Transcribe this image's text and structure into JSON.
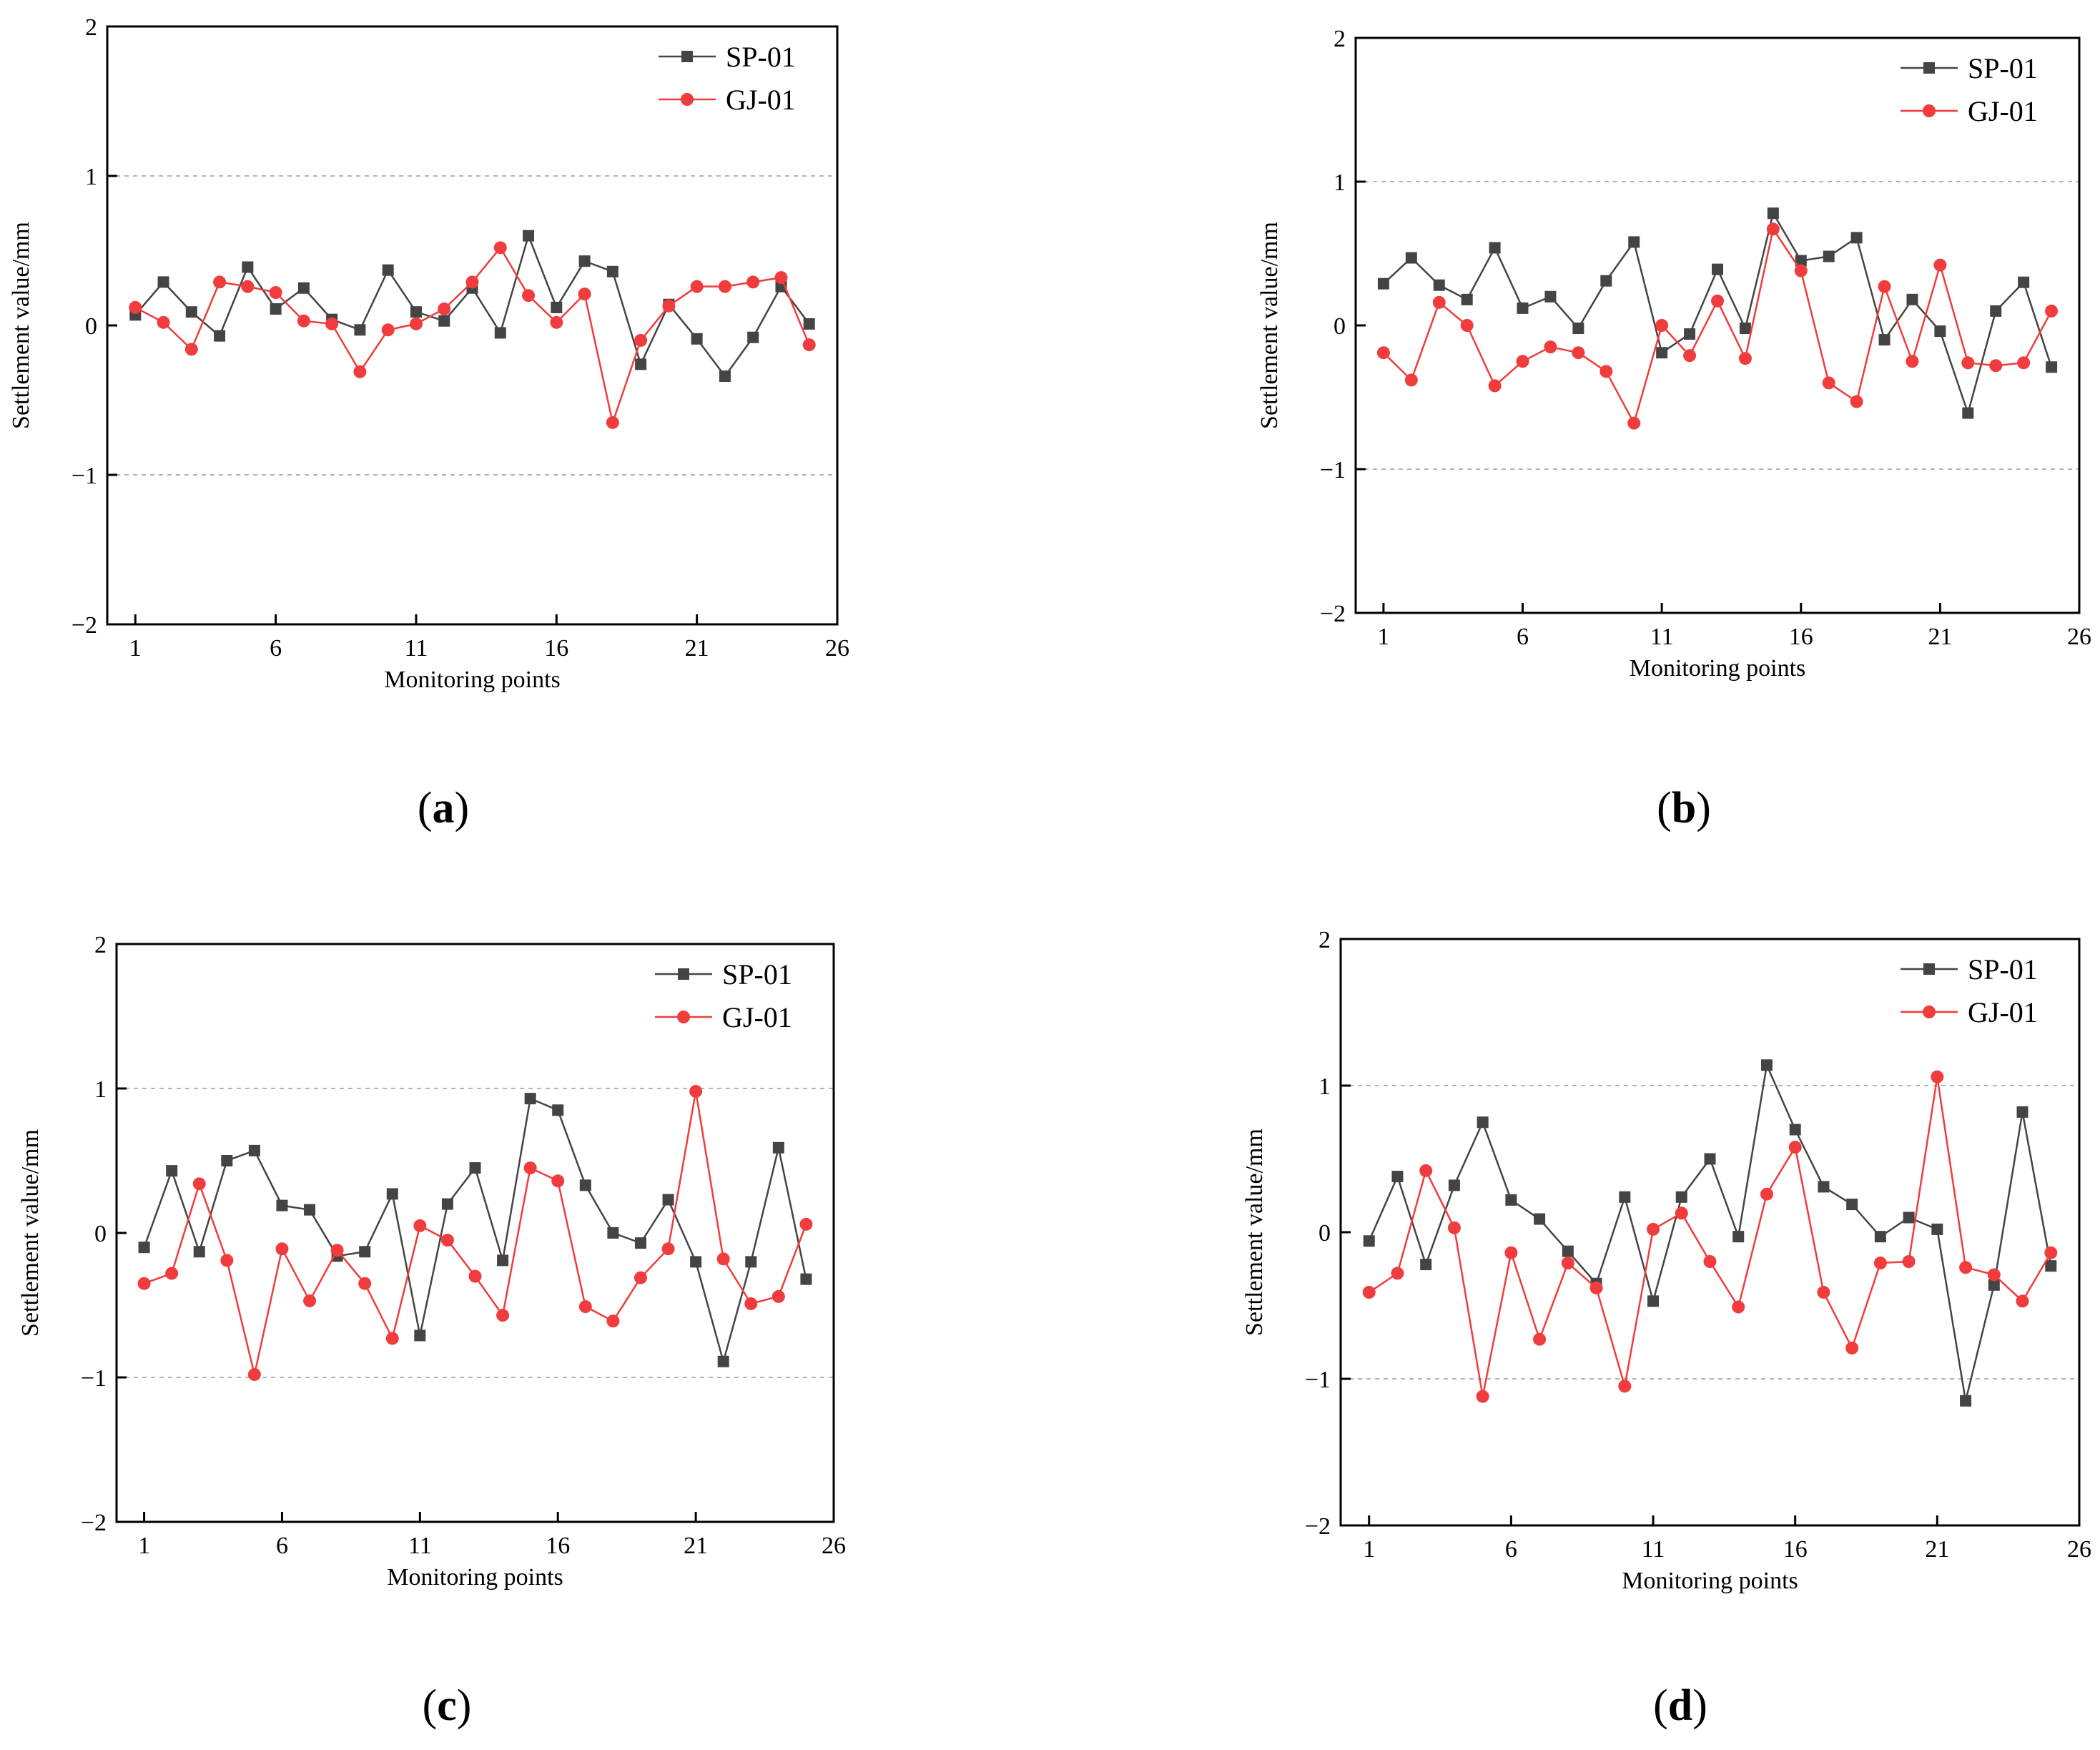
{
  "chart_data": [
    {
      "panel": "a",
      "caption_letter": "a",
      "type": "line",
      "xlabel": "Monitoring points",
      "ylabel": "Settlement value/mm",
      "xlim": [
        0,
        26
      ],
      "ylim": [
        -2,
        2
      ],
      "xticks": [
        1,
        6,
        11,
        16,
        21,
        26
      ],
      "yticks": [
        -2,
        -1,
        0,
        1,
        2
      ],
      "ytick_labels": [
        "−2",
        "−1",
        "0",
        "1",
        "2"
      ],
      "grid_y": [
        -1,
        1
      ],
      "legend_position": "top-right",
      "x": [
        1,
        2,
        3,
        4,
        5,
        6,
        7,
        8,
        9,
        10,
        11,
        12,
        13,
        14,
        15,
        16,
        17,
        18,
        19,
        20,
        21,
        22,
        23,
        24,
        25
      ],
      "series": [
        {
          "name": "SP-01",
          "color": "#444444",
          "marker": "square",
          "values": [
            0.07,
            0.29,
            0.09,
            -0.07,
            0.39,
            0.11,
            0.25,
            0.04,
            -0.03,
            0.37,
            0.09,
            0.03,
            0.25,
            -0.05,
            0.6,
            0.12,
            0.43,
            0.36,
            -0.26,
            0.14,
            -0.09,
            -0.34,
            -0.08,
            0.26,
            0.01
          ]
        },
        {
          "name": "GJ-01",
          "color": "#f03c3c",
          "marker": "circle",
          "values": [
            0.12,
            0.02,
            -0.16,
            0.29,
            0.26,
            0.22,
            0.03,
            0.01,
            -0.31,
            -0.03,
            0.01,
            0.11,
            0.29,
            0.52,
            0.2,
            0.02,
            0.21,
            -0.65,
            -0.1,
            0.13,
            0.26,
            0.26,
            0.29,
            0.32,
            -0.13
          ]
        }
      ]
    },
    {
      "panel": "b",
      "caption_letter": "b",
      "type": "line",
      "xlabel": "Monitoring points",
      "ylabel": "Settlement value/mm",
      "xlim": [
        0,
        26
      ],
      "ylim": [
        -2,
        2
      ],
      "xticks": [
        1,
        6,
        11,
        16,
        21,
        26
      ],
      "yticks": [
        -2,
        -1,
        0,
        1,
        2
      ],
      "ytick_labels": [
        "−2",
        "−1",
        "0",
        "1",
        "2"
      ],
      "grid_y": [
        -1,
        1
      ],
      "legend_position": "top-right",
      "x": [
        1,
        2,
        3,
        4,
        5,
        6,
        7,
        8,
        9,
        10,
        11,
        12,
        13,
        14,
        15,
        16,
        17,
        18,
        19,
        20,
        21,
        22,
        23,
        24,
        25
      ],
      "series": [
        {
          "name": "SP-01",
          "color": "#444444",
          "marker": "square",
          "values": [
            0.29,
            0.47,
            0.28,
            0.18,
            0.54,
            0.12,
            0.2,
            -0.02,
            0.31,
            0.58,
            -0.19,
            -0.06,
            0.39,
            -0.02,
            0.78,
            0.45,
            0.48,
            0.61,
            -0.1,
            0.18,
            -0.04,
            -0.61,
            0.1,
            0.3,
            -0.29
          ]
        },
        {
          "name": "GJ-01",
          "color": "#f03c3c",
          "marker": "circle",
          "values": [
            -0.19,
            -0.38,
            0.16,
            0.0,
            -0.42,
            -0.25,
            -0.15,
            -0.19,
            -0.32,
            -0.68,
            0.0,
            -0.21,
            0.17,
            -0.23,
            0.67,
            0.38,
            -0.4,
            -0.53,
            0.27,
            -0.25,
            0.42,
            -0.26,
            -0.28,
            -0.26,
            0.1
          ]
        }
      ]
    },
    {
      "panel": "c",
      "caption_letter": "c",
      "type": "line",
      "xlabel": "Monitoring points",
      "ylabel": "Settlement value/mm",
      "xlim": [
        0,
        26
      ],
      "ylim": [
        -2,
        2
      ],
      "xticks": [
        1,
        6,
        11,
        16,
        21,
        26
      ],
      "yticks": [
        -2,
        -1,
        0,
        1,
        2
      ],
      "ytick_labels": [
        "−2",
        "−1",
        "0",
        "1",
        "2"
      ],
      "grid_y": [
        -1,
        1
      ],
      "legend_position": "top-right",
      "x": [
        1,
        2,
        3,
        4,
        5,
        6,
        7,
        8,
        9,
        10,
        11,
        12,
        13,
        14,
        15,
        16,
        17,
        18,
        19,
        20,
        21,
        22,
        23,
        24,
        25
      ],
      "series": [
        {
          "name": "SP-01",
          "color": "#444444",
          "marker": "square",
          "values": [
            -0.1,
            0.43,
            -0.13,
            0.5,
            0.57,
            0.19,
            0.16,
            -0.16,
            -0.13,
            0.27,
            -0.71,
            0.2,
            0.45,
            -0.19,
            0.93,
            0.85,
            0.33,
            0.0,
            -0.07,
            0.23,
            -0.2,
            -0.89,
            -0.2,
            0.59,
            -0.32
          ]
        },
        {
          "name": "GJ-01",
          "color": "#f03c3c",
          "marker": "circle",
          "values": [
            -0.35,
            -0.28,
            0.34,
            -0.19,
            -0.98,
            -0.11,
            -0.47,
            -0.12,
            -0.35,
            -0.73,
            0.05,
            -0.05,
            -0.3,
            -0.57,
            0.45,
            0.36,
            -0.51,
            -0.61,
            -0.31,
            -0.11,
            0.98,
            -0.18,
            -0.49,
            -0.44,
            0.06
          ]
        }
      ]
    },
    {
      "panel": "d",
      "caption_letter": "d",
      "type": "line",
      "xlabel": "Monitoring points",
      "ylabel": "Settlement value/mm",
      "xlim": [
        0,
        26
      ],
      "ylim": [
        -2,
        2
      ],
      "xticks": [
        1,
        6,
        11,
        16,
        21,
        26
      ],
      "yticks": [
        -2,
        -1,
        0,
        1,
        2
      ],
      "ytick_labels": [
        "−2",
        "−1",
        "0",
        "1",
        "2"
      ],
      "grid_y": [
        -1,
        1
      ],
      "legend_position": "top-right",
      "x": [
        1,
        2,
        3,
        4,
        5,
        6,
        7,
        8,
        9,
        10,
        11,
        12,
        13,
        14,
        15,
        16,
        17,
        18,
        19,
        20,
        21,
        22,
        23,
        24,
        25
      ],
      "series": [
        {
          "name": "SP-01",
          "color": "#444444",
          "marker": "square",
          "values": [
            -0.06,
            0.38,
            -0.22,
            0.32,
            0.75,
            0.22,
            0.09,
            -0.13,
            -0.35,
            0.24,
            -0.47,
            0.24,
            0.5,
            -0.03,
            1.14,
            0.7,
            0.31,
            0.19,
            -0.03,
            0.1,
            0.02,
            -1.15,
            -0.36,
            0.82,
            -0.23
          ]
        },
        {
          "name": "GJ-01",
          "color": "#f03c3c",
          "marker": "circle",
          "values": [
            -0.41,
            -0.28,
            0.42,
            0.03,
            -1.12,
            -0.14,
            -0.73,
            -0.21,
            -0.38,
            -1.05,
            0.02,
            0.13,
            -0.2,
            -0.51,
            0.26,
            0.58,
            -0.41,
            -0.79,
            -0.21,
            -0.2,
            1.06,
            -0.24,
            -0.29,
            -0.47,
            -0.14
          ]
        }
      ]
    }
  ]
}
